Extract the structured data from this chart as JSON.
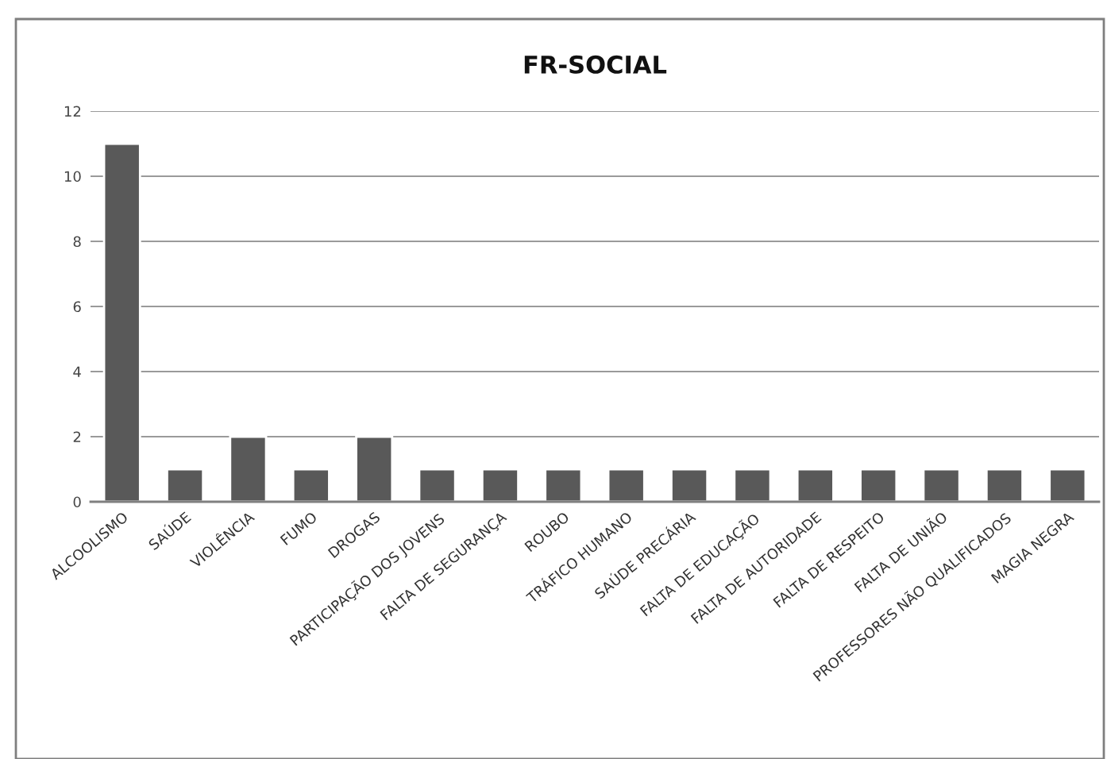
{
  "chart_data": {
    "type": "bar",
    "title": "FR-SOCIAL",
    "categories": [
      "ALCOOLISMO",
      "SAÚDE",
      "VIOLÊNCIA",
      "FUMO",
      "DROGAS",
      "PARTICIPAÇÃO DOS JOVENS",
      "FALTA DE SEGURANÇA",
      "ROUBO",
      "TRÁFICO HUMANO",
      "SAÚDE PRECÁRIA",
      "FALTA DE EDUCAÇÃO",
      "FALTA DE AUTORIDADE",
      "FALTA DE RESPEITO",
      "FALTA DE UNIÃO",
      "PROFESSORES NÃO QUALIFICADOS",
      "MAGIA NEGRA"
    ],
    "values": [
      11,
      1,
      2,
      1,
      2,
      1,
      1,
      1,
      1,
      1,
      1,
      1,
      1,
      1,
      1,
      1
    ],
    "color": "#595959",
    "ylim": [
      0,
      12
    ],
    "yticks": [
      0,
      2,
      4,
      6,
      8,
      10,
      12
    ],
    "grid": "y",
    "legend": false
  }
}
